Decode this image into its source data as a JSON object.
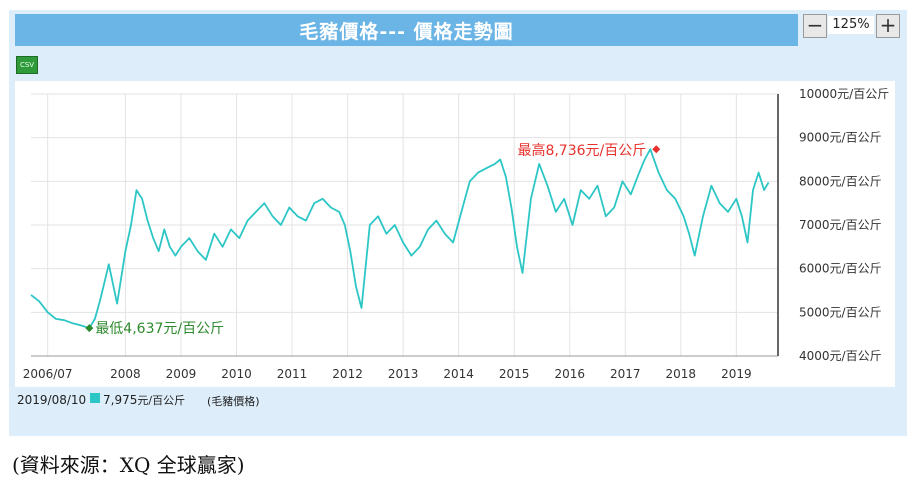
{
  "header": {
    "title": "毛豬價格--- 價格走勢圖"
  },
  "zoom": {
    "minus": "−",
    "level": "125%",
    "plus": "+"
  },
  "csv_label": "CSV",
  "footer": {
    "date": "2019/08/10",
    "value": "7,975",
    "unit": "元/百公斤",
    "series": "(毛豬價格)"
  },
  "source": "(資料來源：XQ 全球贏家)",
  "colors": {
    "line": "#2dc6c6",
    "title_bar": "#6ab4e6",
    "high": "#e8312c",
    "low": "#2d8a2d"
  },
  "chart_data": {
    "type": "line",
    "series_name": "毛豬價格",
    "y_unit": "元/百公斤",
    "ylim": [
      4000,
      10000
    ],
    "y_ticks": [
      4000,
      5000,
      6000,
      7000,
      8000,
      9000,
      10000
    ],
    "y_tick_labels": [
      "4000元/百公斤",
      "5000元/百公斤",
      "6000元/百公斤",
      "7000元/百公斤",
      "8000元/百公斤",
      "9000元/百公斤",
      "10000元/百公斤"
    ],
    "xlim": [
      2006.3,
      2019.75
    ],
    "x_ticks": [
      2006.6,
      2008,
      2009,
      2010,
      2011,
      2012,
      2013,
      2014,
      2015,
      2016,
      2017,
      2018,
      2019
    ],
    "x_tick_labels": [
      "2006/07",
      "2008",
      "2009",
      "2010",
      "2011",
      "2012",
      "2013",
      "2014",
      "2015",
      "2016",
      "2017",
      "2018",
      "2019"
    ],
    "grid": true,
    "x": [
      2006.3,
      2006.45,
      2006.6,
      2006.75,
      2006.9,
      2007.05,
      2007.2,
      2007.35,
      2007.45,
      2007.55,
      2007.7,
      2007.85,
      2008.0,
      2008.1,
      2008.2,
      2008.3,
      2008.4,
      2008.5,
      2008.6,
      2008.7,
      2008.8,
      2008.9,
      2009.0,
      2009.15,
      2009.3,
      2009.45,
      2009.6,
      2009.75,
      2009.9,
      2010.05,
      2010.2,
      2010.35,
      2010.5,
      2010.65,
      2010.8,
      2010.95,
      2011.1,
      2011.25,
      2011.4,
      2011.55,
      2011.7,
      2011.85,
      2011.95,
      2012.05,
      2012.15,
      2012.25,
      2012.4,
      2012.55,
      2012.7,
      2012.85,
      2013.0,
      2013.15,
      2013.3,
      2013.45,
      2013.6,
      2013.75,
      2013.9,
      2014.05,
      2014.2,
      2014.35,
      2014.5,
      2014.65,
      2014.75,
      2014.85,
      2014.95,
      2015.05,
      2015.15,
      2015.3,
      2015.45,
      2015.6,
      2015.75,
      2015.9,
      2016.05,
      2016.2,
      2016.35,
      2016.5,
      2016.65,
      2016.8,
      2016.95,
      2017.1,
      2017.25,
      2017.35,
      2017.45,
      2017.6,
      2017.75,
      2017.9,
      2018.05,
      2018.15,
      2018.25,
      2018.4,
      2018.55,
      2018.7,
      2018.85,
      2019.0,
      2019.1,
      2019.2,
      2019.3,
      2019.4,
      2019.5,
      2019.58
    ],
    "y": [
      5400,
      5250,
      5000,
      4850,
      4820,
      4750,
      4700,
      4637,
      4850,
      5300,
      6100,
      5200,
      6400,
      7000,
      7800,
      7600,
      7100,
      6700,
      6400,
      6900,
      6500,
      6300,
      6500,
      6700,
      6400,
      6200,
      6800,
      6500,
      6900,
      6700,
      7100,
      7300,
      7500,
      7200,
      7000,
      7400,
      7200,
      7100,
      7500,
      7600,
      7400,
      7300,
      7000,
      6400,
      5600,
      5100,
      7000,
      7200,
      6800,
      7000,
      6600,
      6300,
      6500,
      6900,
      7100,
      6800,
      6600,
      7300,
      8000,
      8200,
      8300,
      8400,
      8500,
      8100,
      7400,
      6500,
      5900,
      7600,
      8400,
      7900,
      7300,
      7600,
      7000,
      7800,
      7600,
      7900,
      7200,
      7400,
      8000,
      7700,
      8200,
      8500,
      8736,
      8200,
      7800,
      7600,
      7200,
      6800,
      6300,
      7200,
      7900,
      7500,
      7300,
      7600,
      7200,
      6600,
      7800,
      8200,
      7800,
      7975
    ],
    "high": {
      "x": 2017.45,
      "y": 8736,
      "label": "最高8,736元/百公斤"
    },
    "low": {
      "x": 2007.35,
      "y": 4637,
      "label": "最低4,637元/百公斤"
    }
  }
}
